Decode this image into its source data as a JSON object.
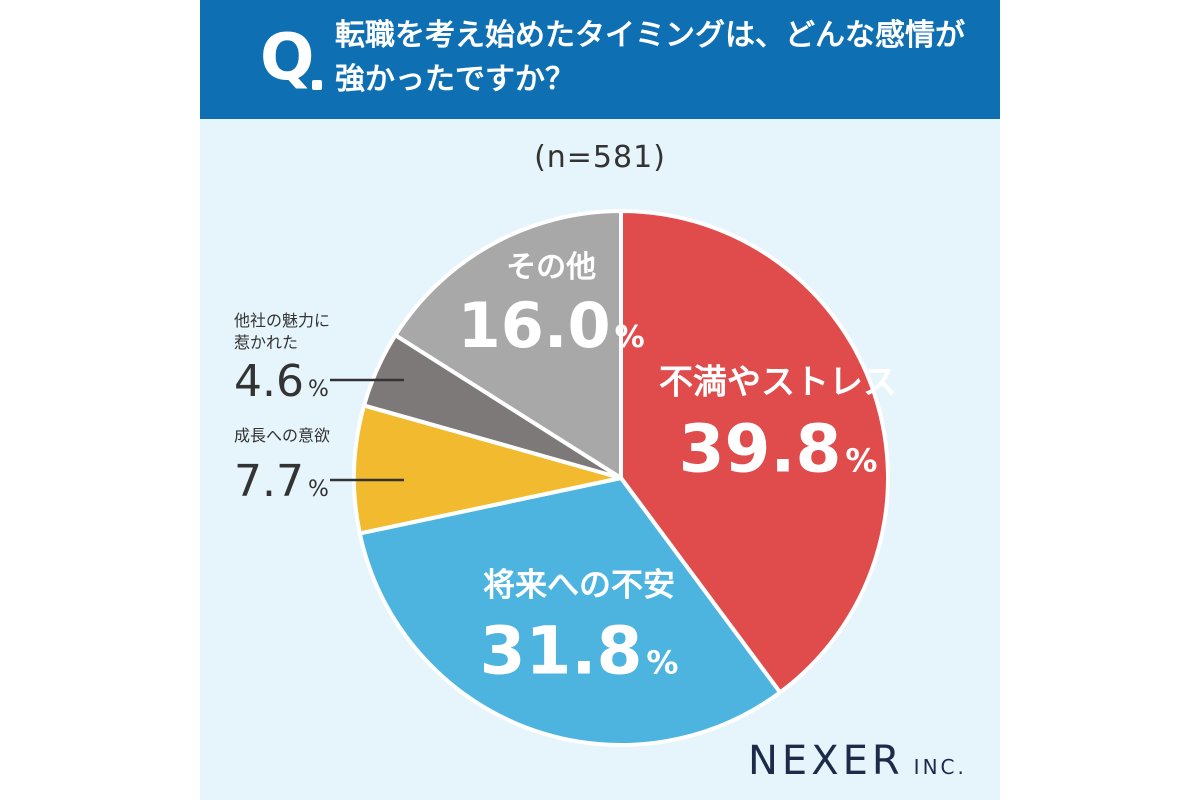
{
  "header": {
    "q_mark": "Q",
    "question_line1": "転職を考え始めたタイミングは、どんな感情が",
    "question_line2": "強かったですか？"
  },
  "sample": "(n=581)",
  "colors": {
    "header_bg": "#0e6fb3",
    "panel_bg": "#e6f4fc",
    "stress": "#e04b4c",
    "future": "#4db4e0",
    "growth": "#f2ba2e",
    "attraction": "#7c7978",
    "other": "#a8a8a8"
  },
  "chart_data": {
    "type": "pie",
    "start": "12 o'clock",
    "direction": "clockwise",
    "slices": [
      {
        "label": "不満やストレス",
        "value": 39.8,
        "display": "39.8",
        "color": "#e04b4c"
      },
      {
        "label": "将来への不安",
        "value": 31.8,
        "display": "31.8",
        "color": "#4db4e0"
      },
      {
        "label": "成長への意欲",
        "value": 7.7,
        "display": "7.7",
        "color": "#f2ba2e"
      },
      {
        "label_lines": [
          "他社の魅力に",
          "惹かれた"
        ],
        "value": 4.6,
        "display": "4.6",
        "color": "#7c7978"
      },
      {
        "label": "その他",
        "value": 16.0,
        "display": "16.0",
        "color": "#a8a8a8"
      }
    ],
    "unit": "%"
  },
  "logo": {
    "main": "NEXER",
    "sub": "INC."
  }
}
